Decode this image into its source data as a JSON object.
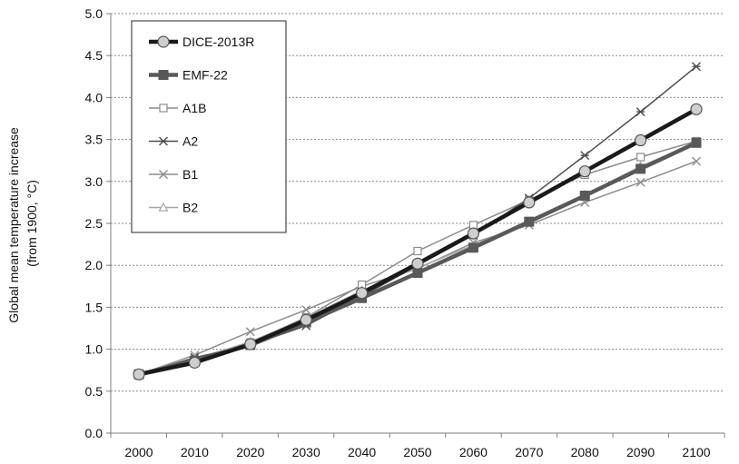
{
  "chart_data": {
    "type": "line",
    "ylabel": [
      "Global mean temperature increase",
      "(from 1900, °C)"
    ],
    "xlabel": "",
    "x": [
      2000,
      2010,
      2020,
      2030,
      2040,
      2050,
      2060,
      2070,
      2080,
      2090,
      2100
    ],
    "x_ticks": [
      "2000",
      "2010",
      "2020",
      "2030",
      "2040",
      "2050",
      "2060",
      "2070",
      "2080",
      "2090",
      "2100"
    ],
    "ylim": [
      0.0,
      5.0
    ],
    "y_ticks": [
      "0.0",
      "0.5",
      "1.0",
      "1.5",
      "2.0",
      "2.5",
      "3.0",
      "3.5",
      "4.0",
      "4.5",
      "5.0"
    ],
    "grid": "horizontal",
    "legend_position": "top-left",
    "series": [
      {
        "name": "DICE-2013R",
        "marker": "circle",
        "color": "#1a1a1a",
        "values": [
          0.7,
          0.84,
          1.06,
          1.35,
          1.67,
          2.02,
          2.38,
          2.75,
          3.12,
          3.49,
          3.86
        ]
      },
      {
        "name": "EMF-22",
        "marker": "square",
        "color": "#595959",
        "values": [
          0.7,
          0.86,
          1.05,
          1.32,
          1.61,
          1.91,
          2.21,
          2.52,
          2.83,
          3.15,
          3.46
        ]
      },
      {
        "name": "A1B",
        "marker": "open-square",
        "color": "#8c8c8c",
        "values": [
          0.7,
          0.88,
          1.08,
          1.38,
          1.77,
          2.17,
          2.48,
          2.78,
          3.08,
          3.29,
          3.48
        ]
      },
      {
        "name": "A2",
        "marker": "asterisk",
        "color": "#4d4d4d",
        "values": [
          0.7,
          0.9,
          1.05,
          1.28,
          1.63,
          2.0,
          2.36,
          2.8,
          3.31,
          3.83,
          4.37
        ]
      },
      {
        "name": "B1",
        "marker": "x",
        "color": "#8c8c8c",
        "values": [
          0.7,
          0.93,
          1.21,
          1.47,
          1.75,
          1.96,
          2.27,
          2.48,
          2.75,
          2.99,
          3.24
        ]
      },
      {
        "name": "B2",
        "marker": "triangle",
        "color": "#a6a6a6",
        "values": [
          0.7,
          0.88,
          1.09,
          1.37,
          1.7,
          1.97,
          2.24,
          2.52,
          2.84,
          3.18,
          3.46
        ]
      }
    ]
  }
}
